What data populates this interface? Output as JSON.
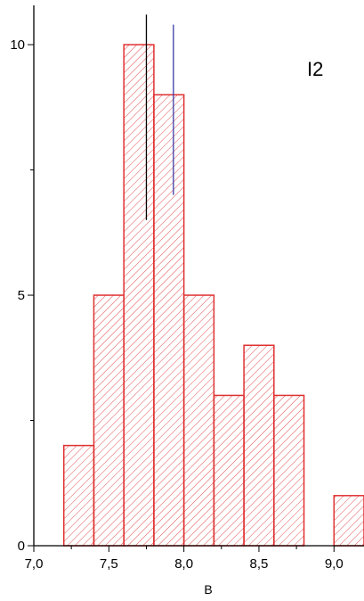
{
  "chart_data": {
    "type": "bar",
    "panel_label": "I2",
    "xlabel": "B",
    "ylabel": "",
    "bin_width": 0.2,
    "bins": [
      {
        "x0": 7.2,
        "count": 2
      },
      {
        "x0": 7.4,
        "count": 5
      },
      {
        "x0": 7.6,
        "count": 10
      },
      {
        "x0": 7.8,
        "count": 9
      },
      {
        "x0": 8.0,
        "count": 5
      },
      {
        "x0": 8.2,
        "count": 3
      },
      {
        "x0": 8.4,
        "count": 4
      },
      {
        "x0": 8.6,
        "count": 3
      },
      {
        "x0": 9.0,
        "count": 1
      }
    ],
    "xlim": [
      7.0,
      9.2
    ],
    "ylim": [
      0,
      10.5
    ],
    "x_ticks": [
      {
        "value": 7.0,
        "label": "7,0"
      },
      {
        "value": 7.5,
        "label": "7,5"
      },
      {
        "value": 8.0,
        "label": "8,0"
      },
      {
        "value": 8.5,
        "label": "8,5"
      },
      {
        "value": 9.0,
        "label": "9,0"
      }
    ],
    "y_ticks": [
      {
        "value": 0,
        "label": "0"
      },
      {
        "value": 5,
        "label": "5"
      },
      {
        "value": 10,
        "label": "10"
      }
    ],
    "reference_lines": [
      {
        "x": 7.75,
        "y_from": 6.5,
        "y_to": 10.6,
        "color": "#000000"
      },
      {
        "x": 7.93,
        "y_from": 7.0,
        "y_to": 10.4,
        "color": "#3a3aa8"
      }
    ],
    "colors": {
      "bar_edge": "#e03030",
      "hatch": "#e05050",
      "axis": "#000000"
    },
    "grid": false,
    "legend": "none"
  }
}
